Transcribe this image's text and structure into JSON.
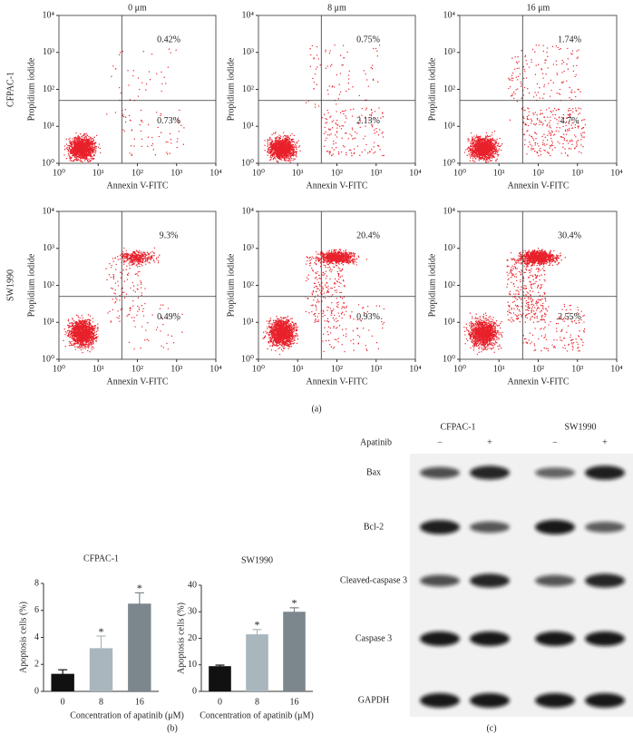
{
  "flow_cytometry": {
    "columns": [
      "0 μm",
      "8 μm",
      "16 μm"
    ],
    "rows": [
      "CFPAC-1",
      "SW1990"
    ],
    "xlabel": "Annexin V-FITC",
    "ylabel": "Propidium iodide",
    "log_scale": true,
    "xlim": [
      1,
      10000
    ],
    "ylim": [
      1,
      10000
    ],
    "xticks": [
      {
        "value": 1,
        "label": "10⁰"
      },
      {
        "value": 10,
        "label": "10¹"
      },
      {
        "value": 100,
        "label": "10²"
      },
      {
        "value": 1000,
        "label": "10³"
      },
      {
        "value": 10000,
        "label": "10⁴"
      }
    ],
    "yticks": [
      {
        "value": 1,
        "label": "10⁰"
      },
      {
        "value": 10,
        "label": "10¹"
      },
      {
        "value": 100,
        "label": "10²"
      },
      {
        "value": 1000,
        "label": "10³"
      },
      {
        "value": 10000,
        "label": "10⁴"
      }
    ],
    "gate": {
      "x": 40,
      "y": 50
    },
    "color": "#e8202a",
    "quadrants": [
      [
        {
          "upper_right": "0.42%",
          "lower_right": "0.73%"
        },
        {
          "upper_right": "0.75%",
          "lower_right": "2.13%"
        },
        {
          "upper_right": "1.74%",
          "lower_right": "4.7%"
        }
      ],
      [
        {
          "upper_right": "9.3%",
          "lower_right": "0.49%"
        },
        {
          "upper_right": "20.4%",
          "lower_right": "0.93%"
        },
        {
          "upper_right": "30.4%",
          "lower_right": "2.55%"
        }
      ]
    ]
  },
  "chart_data": [
    {
      "type": "bar",
      "title": "CFPAC-1",
      "ylabel": "Apoptosis cells (%)",
      "xlabel": "Concentration of apatinib (μM)",
      "categories": [
        "0",
        "8",
        "16"
      ],
      "values": [
        1.3,
        3.2,
        6.5
      ],
      "errors": [
        0.3,
        0.9,
        0.8
      ],
      "significance": [
        null,
        "*",
        "*"
      ],
      "colors": [
        "#111111",
        "#a9b6bd",
        "#7b878d"
      ],
      "ylim": [
        0,
        8
      ],
      "yticks": [
        0,
        2,
        4,
        6,
        8
      ]
    },
    {
      "type": "bar",
      "title": "SW1990",
      "ylabel": "Apoptosis cells (%)",
      "xlabel": "Concentration of apatinib (μM)",
      "categories": [
        "0",
        "8",
        "16"
      ],
      "values": [
        9.5,
        21.5,
        30
      ],
      "errors": [
        0.4,
        1.8,
        1.5
      ],
      "significance": [
        null,
        "*",
        "*"
      ],
      "colors": [
        "#111111",
        "#a9b6bd",
        "#7b878d"
      ],
      "ylim": [
        0,
        40
      ],
      "yticks": [
        0,
        10,
        20,
        30,
        40
      ]
    }
  ],
  "western_blot": {
    "groups": [
      "CFPAC-1",
      "SW1990"
    ],
    "treatment": "Apatinib",
    "lanes": [
      "−",
      "+",
      "−",
      "+"
    ],
    "proteins": [
      "Bax",
      "Bcl-2",
      "Cleaved-caspase 3",
      "Caspase 3",
      "GAPDH"
    ]
  },
  "panel_labels": [
    "(a)",
    "(b)",
    "(c)"
  ]
}
